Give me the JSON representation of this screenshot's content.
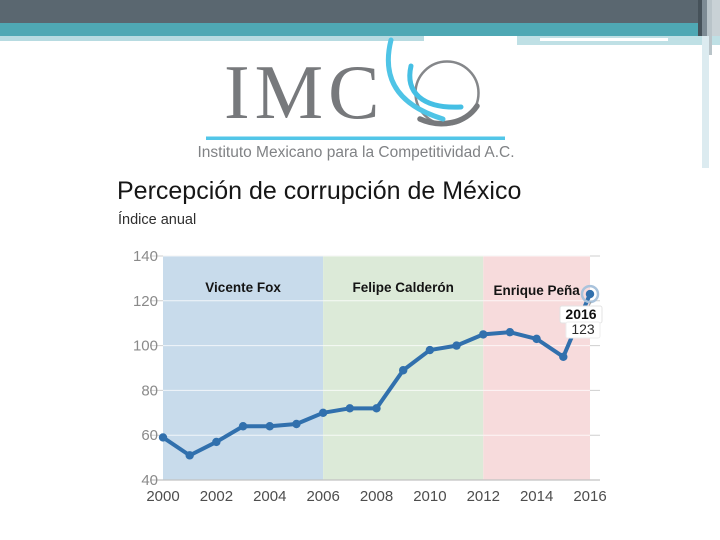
{
  "slide": {
    "logo": {
      "acronym": "IMC",
      "tagline": "Instituto Mexicano para la Competitividad A.C."
    },
    "title": "Percepción de corrupción de México",
    "subtitle": "Índice anual"
  },
  "colors": {
    "header_dark": "#5a6770",
    "header_teal": "#4fa8b4",
    "pale_teal": "#b7dbe1",
    "logo_cyan": "#4fc4e6",
    "logo_gray": "#808285"
  },
  "chart_data": {
    "type": "line",
    "title": "Percepción de corrupción de México",
    "subtitle": "Índice anual",
    "x": [
      2000,
      2001,
      2002,
      2003,
      2004,
      2005,
      2006,
      2007,
      2008,
      2009,
      2010,
      2011,
      2012,
      2013,
      2014,
      2015,
      2016
    ],
    "values": [
      59,
      51,
      57,
      64,
      64,
      65,
      70,
      72,
      72,
      89,
      98,
      100,
      105,
      106,
      103,
      95,
      123
    ],
    "xlim": [
      2000,
      2016
    ],
    "ylim": [
      40,
      140
    ],
    "yticks": [
      140,
      120,
      100,
      80,
      60,
      40
    ],
    "xticks": [
      2000,
      2002,
      2004,
      2006,
      2008,
      2010,
      2012,
      2014,
      2016
    ],
    "grid": true,
    "legend": "none",
    "line_color": "#3170ad",
    "marker": "circle",
    "regions": [
      {
        "label": "Vicente Fox",
        "from": 2000,
        "to": 2006,
        "color": "#c8dbeb"
      },
      {
        "label": "Felipe Calderón",
        "from": 2006,
        "to": 2012,
        "color": "#dcead8"
      },
      {
        "label": "Enrique Peña",
        "from": 2012,
        "to": 2016,
        "color": "#f7dbdc"
      }
    ],
    "annotation": {
      "label": "2016",
      "value": "123",
      "x": 2016,
      "y": 123
    }
  }
}
